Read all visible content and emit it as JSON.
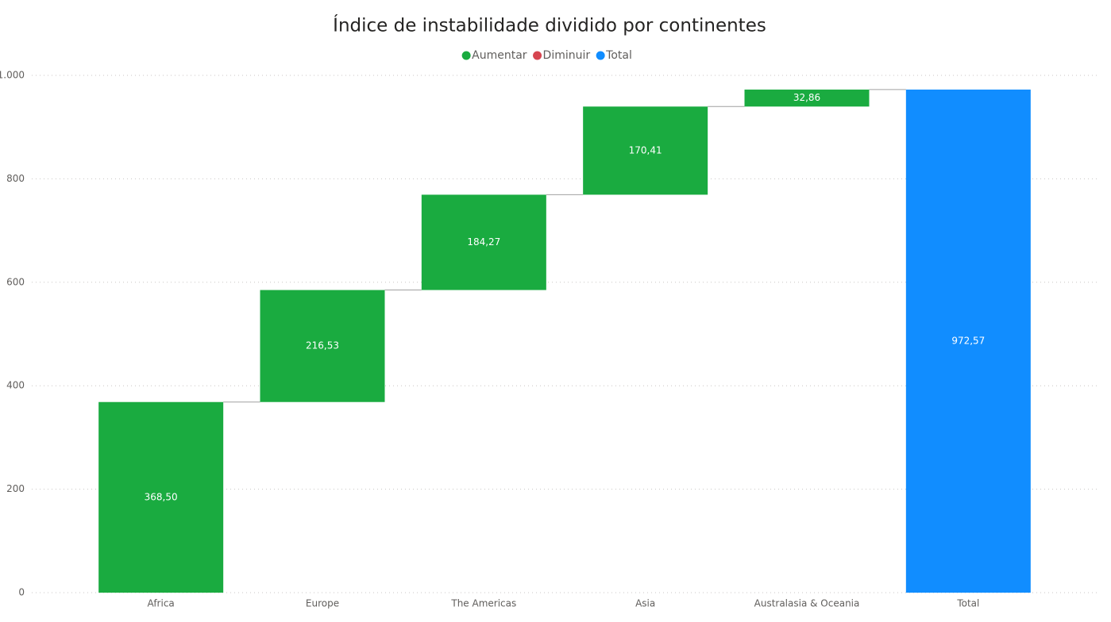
{
  "chart_data": {
    "type": "waterfall",
    "title": "Índice de instabilidade dividido por continentes",
    "categories": [
      "Africa",
      "Europe",
      "The Americas",
      "Asia",
      "Australasia & Oceania",
      "Total"
    ],
    "series": [
      {
        "name": "Aumentar",
        "color": "#1aab40",
        "values": [
          368.5,
          216.53,
          184.27,
          170.41,
          32.86,
          null
        ],
        "value_labels": [
          "368,50",
          "216,53",
          "184,27",
          "170,41",
          "32,86",
          null
        ]
      },
      {
        "name": "Diminuir",
        "color": "#d64550",
        "values": [
          null,
          null,
          null,
          null,
          null,
          null
        ]
      },
      {
        "name": "Total",
        "color": "#118dff",
        "values": [
          null,
          null,
          null,
          null,
          null,
          972.57
        ],
        "value_labels": [
          null,
          null,
          null,
          null,
          null,
          "972,57"
        ]
      }
    ],
    "ylim": [
      0,
      1000
    ],
    "yticks": [
      0,
      200,
      400,
      600,
      800,
      {
        "value": 1000,
        "label": "1.000"
      }
    ],
    "grid": true
  }
}
